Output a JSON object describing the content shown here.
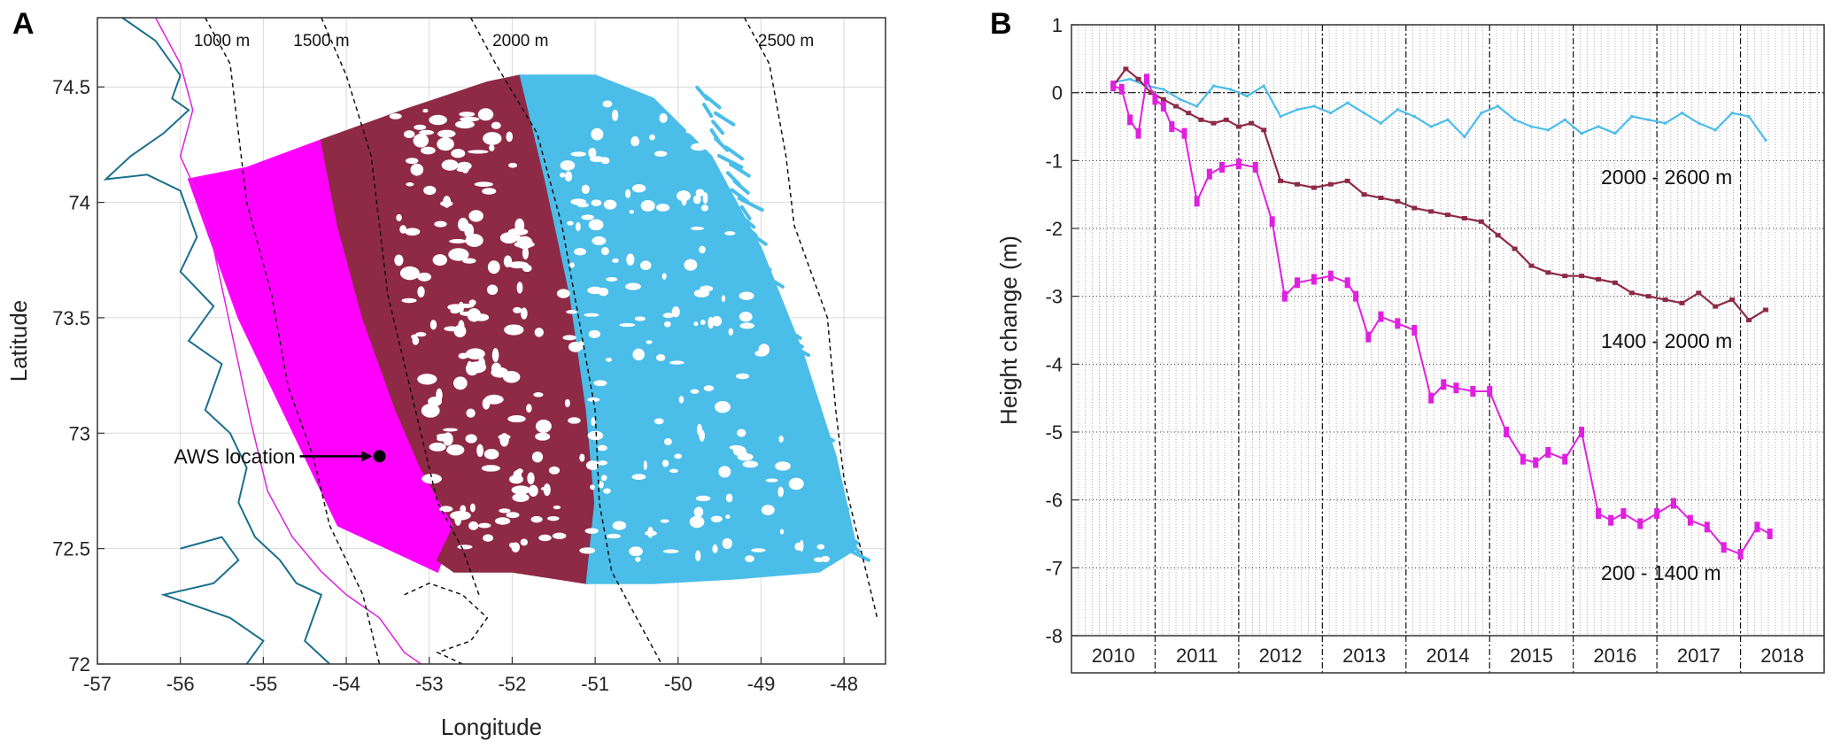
{
  "panels": {
    "a": {
      "letter": "A"
    },
    "b": {
      "letter": "B"
    }
  },
  "chart_data": [
    {
      "type": "scatter",
      "title": "",
      "xlabel": "Longitude",
      "ylabel": "Latitude",
      "xlim": [
        -57,
        -47.5
      ],
      "ylim": [
        72,
        74.8
      ],
      "xticks": [
        -57,
        -56,
        -55,
        -54,
        -53,
        -52,
        -51,
        -50,
        -49,
        -48
      ],
      "yticks": [
        72,
        72.5,
        73,
        73.5,
        74,
        74.5
      ],
      "grid": true,
      "contour_labels": [
        "1000 m",
        "1500 m",
        "2000 m",
        "2500 m"
      ],
      "annotation": {
        "text": "AWS location",
        "lon": -53.6,
        "lat": 72.9
      },
      "regions": [
        {
          "name": "200 - 1400 m",
          "color": "#ff00ff"
        },
        {
          "name": "1400 - 2000 m",
          "color": "#8e2a45"
        },
        {
          "name": "2000 - 2600 m",
          "color": "#4bbde9"
        }
      ]
    },
    {
      "type": "line",
      "title": "",
      "xlabel": "",
      "ylabel": "Height change (m)",
      "xlim": [
        2009.5,
        2018.5
      ],
      "ylim": [
        -8,
        1
      ],
      "yticks": [
        1,
        0,
        -1,
        -2,
        -3,
        -4,
        -5,
        -6,
        -7,
        -8
      ],
      "year_labels": [
        "2010",
        "2011",
        "2012",
        "2013",
        "2014",
        "2015",
        "2016",
        "2017",
        "2018"
      ],
      "series": [
        {
          "name": "2000 - 2600 m",
          "color": "#4bbde9",
          "x": [
            2010.0,
            2010.2,
            2010.4,
            2010.6,
            2010.8,
            2011.0,
            2011.2,
            2011.4,
            2011.6,
            2011.8,
            2012.0,
            2012.2,
            2012.4,
            2012.6,
            2012.8,
            2013.0,
            2013.2,
            2013.4,
            2013.6,
            2013.8,
            2014.0,
            2014.2,
            2014.4,
            2014.6,
            2014.8,
            2015.0,
            2015.2,
            2015.4,
            2015.6,
            2015.8,
            2016.0,
            2016.2,
            2016.4,
            2016.6,
            2016.8,
            2017.0,
            2017.2,
            2017.4,
            2017.6,
            2017.8
          ],
          "values": [
            0.15,
            0.2,
            0.1,
            0.05,
            -0.1,
            -0.2,
            0.1,
            0.05,
            -0.05,
            0.1,
            -0.35,
            -0.25,
            -0.2,
            -0.3,
            -0.15,
            -0.3,
            -0.45,
            -0.25,
            -0.35,
            -0.5,
            -0.4,
            -0.65,
            -0.3,
            -0.2,
            -0.4,
            -0.5,
            -0.55,
            -0.4,
            -0.6,
            -0.5,
            -0.6,
            -0.35,
            -0.4,
            -0.45,
            -0.3,
            -0.45,
            -0.55,
            -0.3,
            -0.35,
            -0.7
          ]
        },
        {
          "name": "1400 - 2000 m",
          "color": "#8e2a45",
          "x": [
            2010.0,
            2010.15,
            2010.3,
            2010.45,
            2010.6,
            2010.75,
            2010.9,
            2011.05,
            2011.2,
            2011.35,
            2011.5,
            2011.65,
            2011.8,
            2012.0,
            2012.2,
            2012.4,
            2012.6,
            2012.8,
            2013.0,
            2013.2,
            2013.4,
            2013.6,
            2013.8,
            2014.0,
            2014.2,
            2014.4,
            2014.6,
            2014.8,
            2015.0,
            2015.2,
            2015.4,
            2015.6,
            2015.8,
            2016.0,
            2016.2,
            2016.4,
            2016.6,
            2016.8,
            2017.0,
            2017.2,
            2017.4,
            2017.6,
            2017.8
          ],
          "values": [
            0.1,
            0.35,
            0.2,
            0.0,
            -0.1,
            -0.2,
            -0.3,
            -0.4,
            -0.45,
            -0.4,
            -0.5,
            -0.45,
            -0.55,
            -1.3,
            -1.35,
            -1.4,
            -1.35,
            -1.3,
            -1.5,
            -1.55,
            -1.6,
            -1.7,
            -1.75,
            -1.8,
            -1.85,
            -1.9,
            -2.1,
            -2.3,
            -2.55,
            -2.65,
            -2.7,
            -2.7,
            -2.75,
            -2.8,
            -2.95,
            -3.0,
            -3.05,
            -3.1,
            -2.95,
            -3.15,
            -3.05,
            -3.35,
            -3.2
          ]
        },
        {
          "name": "200 - 1400 m",
          "color": "#e020e0",
          "x": [
            2010.0,
            2010.1,
            2010.2,
            2010.3,
            2010.4,
            2010.5,
            2010.6,
            2010.7,
            2010.85,
            2011.0,
            2011.15,
            2011.3,
            2011.5,
            2011.7,
            2011.9,
            2012.05,
            2012.2,
            2012.4,
            2012.6,
            2012.8,
            2012.9,
            2013.05,
            2013.2,
            2013.4,
            2013.6,
            2013.8,
            2013.95,
            2014.1,
            2014.3,
            2014.5,
            2014.7,
            2014.9,
            2015.05,
            2015.2,
            2015.4,
            2015.6,
            2015.8,
            2015.95,
            2016.1,
            2016.3,
            2016.5,
            2016.7,
            2016.9,
            2017.1,
            2017.3,
            2017.5,
            2017.7,
            2017.85
          ],
          "values": [
            0.1,
            0.05,
            -0.4,
            -0.6,
            0.2,
            -0.1,
            -0.2,
            -0.5,
            -0.6,
            -1.6,
            -1.2,
            -1.1,
            -1.05,
            -1.1,
            -1.9,
            -3.0,
            -2.8,
            -2.75,
            -2.7,
            -2.8,
            -3.0,
            -3.6,
            -3.3,
            -3.4,
            -3.5,
            -4.5,
            -4.3,
            -4.35,
            -4.4,
            -4.4,
            -5.0,
            -5.4,
            -5.45,
            -5.3,
            -5.4,
            -5.0,
            -6.2,
            -6.3,
            -6.2,
            -6.35,
            -6.2,
            -6.05,
            -6.3,
            -6.4,
            -6.7,
            -6.8,
            -6.4,
            -6.5
          ]
        }
      ]
    }
  ]
}
